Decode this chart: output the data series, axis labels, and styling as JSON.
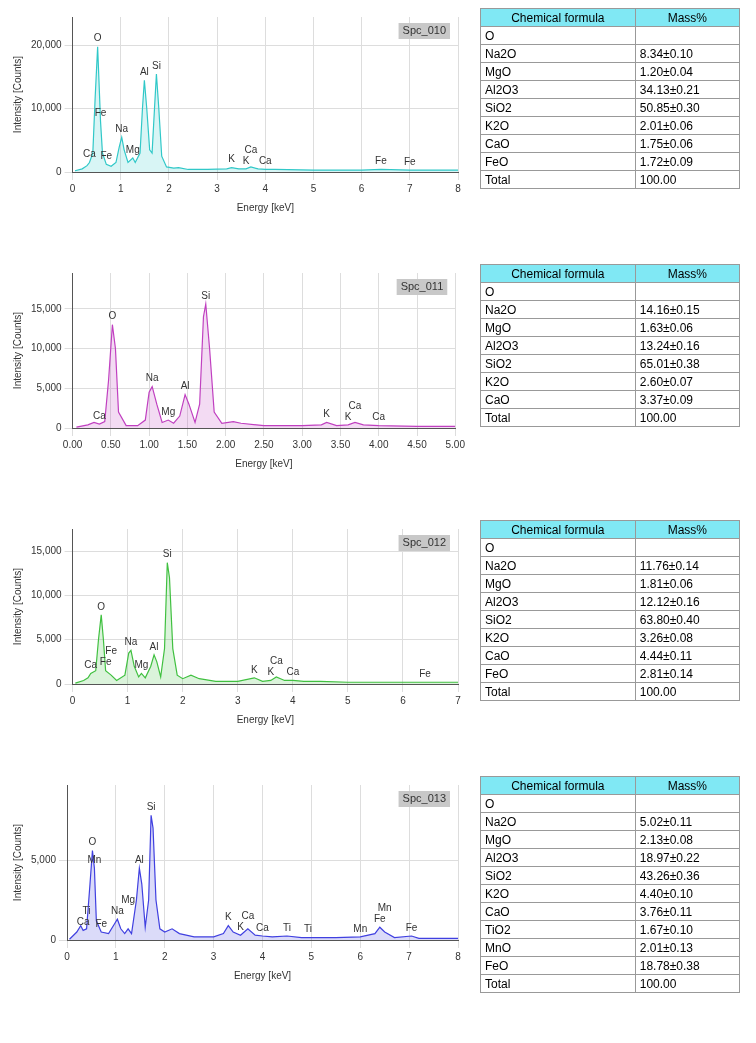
{
  "chart_data": [
    {
      "type": "area",
      "xlabel": "Energy [keV]",
      "ylabel": "Intensity [Counts]",
      "marker": "none",
      "grid": true,
      "xlim": [
        0,
        8
      ],
      "xticks": [
        0,
        1,
        2,
        3,
        4,
        5,
        6,
        7,
        8
      ],
      "ylim": [
        0,
        24500
      ],
      "yticks": [
        {
          "value": 0,
          "label": "0"
        },
        {
          "value": 10000,
          "label": "10,000"
        },
        {
          "value": 20000,
          "label": "20,000"
        }
      ],
      "series": [
        {
          "color": "#30c8c8",
          "x": [
            0.05,
            0.2,
            0.3,
            0.35,
            0.42,
            0.47,
            0.52,
            0.56,
            0.58,
            0.62,
            0.7,
            0.8,
            0.9,
            0.97,
            1.02,
            1.07,
            1.15,
            1.25,
            1.3,
            1.4,
            1.45,
            1.49,
            1.54,
            1.6,
            1.65,
            1.7,
            1.74,
            1.79,
            1.85,
            1.95,
            2.1,
            2.2,
            2.4,
            2.8,
            3.2,
            3.3,
            3.45,
            3.6,
            3.7,
            3.85,
            4.0,
            4.2,
            5,
            6,
            6.4,
            7,
            8
          ],
          "values": [
            200,
            500,
            1000,
            1500,
            3000,
            12000,
            19800,
            12000,
            8000,
            3000,
            1200,
            900,
            1500,
            4000,
            5500,
            3500,
            1500,
            2200,
            1500,
            3000,
            10000,
            14500,
            10000,
            3500,
            3000,
            10000,
            15500,
            10000,
            2500,
            800,
            600,
            700,
            400,
            400,
            500,
            700,
            500,
            500,
            800,
            500,
            400,
            400,
            300,
            300,
            400,
            300,
            300
          ]
        }
      ],
      "annotations": [
        "Spc_010",
        {
          "text": "Ca",
          "x": 0.35,
          "y": 1500
        },
        {
          "text": "O",
          "x": 0.52,
          "y": 19800
        },
        {
          "text": "Fe",
          "x": 0.58,
          "y": 8000
        },
        {
          "text": "Fe",
          "x": 0.7,
          "y": 1200
        },
        {
          "text": "Na",
          "x": 1.02,
          "y": 5500
        },
        {
          "text": "Mg",
          "x": 1.25,
          "y": 2200
        },
        {
          "text": "Al",
          "x": 1.49,
          "y": 14500
        },
        {
          "text": "Si",
          "x": 1.74,
          "y": 15500
        },
        {
          "text": "K",
          "x": 3.3,
          "y": 700
        },
        {
          "text": "K",
          "x": 3.6,
          "y": 500
        },
        {
          "text": "Ca",
          "x": 3.7,
          "y": 800
        },
        {
          "text": "Ca",
          "x": 4.0,
          "y": 400
        },
        {
          "text": "Fe",
          "x": 6.4,
          "y": 400
        },
        {
          "text": "Fe",
          "x": 7,
          "y": 300
        }
      ]
    },
    {
      "type": "other",
      "annotations": [
        "Chemical formula",
        "Mass%"
      ],
      "categories": [
        "O",
        "Na2O",
        "MgO",
        "Al2O3",
        "SiO2",
        "K2O",
        "CaO",
        "FeO",
        "Total"
      ],
      "value_labels": [
        null,
        "8.34±0.10",
        "1.20±0.04",
        "34.13±0.21",
        "50.85±0.30",
        "2.01±0.06",
        "1.75±0.06",
        "1.72±0.09",
        "100.00"
      ]
    },
    {
      "type": "area",
      "xlabel": "Energy [keV]",
      "ylabel": "Intensity [Counts]",
      "marker": "none",
      "grid": true,
      "xlim": [
        0,
        5
      ],
      "xticks": [
        {
          "value": 0,
          "label": "0.00"
        },
        {
          "value": 0.5,
          "label": "0.50"
        },
        {
          "value": 1,
          "label": "1.00"
        },
        {
          "value": 1.5,
          "label": "1.50"
        },
        {
          "value": 2,
          "label": "2.00"
        },
        {
          "value": 2.5,
          "label": "2.50"
        },
        {
          "value": 3,
          "label": "3.00"
        },
        {
          "value": 3.5,
          "label": "3.50"
        },
        {
          "value": 4,
          "label": "4.00"
        },
        {
          "value": 4.5,
          "label": "4.50"
        },
        {
          "value": 5,
          "label": "5.00"
        }
      ],
      "ylim": [
        0,
        19500
      ],
      "yticks": [
        {
          "value": 0,
          "label": "0"
        },
        {
          "value": 5000,
          "label": "5,000"
        },
        {
          "value": 10000,
          "label": "10,000"
        },
        {
          "value": 15000,
          "label": "15,000"
        }
      ],
      "series": [
        {
          "color": "#c040c0",
          "x": [
            0.05,
            0.2,
            0.28,
            0.35,
            0.42,
            0.47,
            0.52,
            0.56,
            0.6,
            0.7,
            0.85,
            0.95,
            1.0,
            1.04,
            1.1,
            1.17,
            1.25,
            1.32,
            1.4,
            1.47,
            1.52,
            1.6,
            1.66,
            1.71,
            1.74,
            1.79,
            1.85,
            1.95,
            2.1,
            2.2,
            2.5,
            3.0,
            3.25,
            3.32,
            3.45,
            3.6,
            3.69,
            3.8,
            4.0,
            4.5,
            5.0
          ],
          "values": [
            100,
            400,
            700,
            500,
            800,
            6000,
            13000,
            10000,
            2000,
            300,
            300,
            1000,
            4500,
            5200,
            3000,
            700,
            1000,
            600,
            1500,
            4200,
            3000,
            700,
            3000,
            14000,
            15600,
            10000,
            2000,
            600,
            800,
            600,
            300,
            300,
            400,
            700,
            300,
            400,
            700,
            400,
            300,
            200,
            200
          ]
        }
      ],
      "annotations": [
        "Spc_011",
        {
          "text": "Ca",
          "x": 0.35,
          "y": 500
        },
        {
          "text": "O",
          "x": 0.52,
          "y": 13000
        },
        {
          "text": "Na",
          "x": 1.04,
          "y": 5200
        },
        {
          "text": "Mg",
          "x": 1.25,
          "y": 1000
        },
        {
          "text": "Al",
          "x": 1.47,
          "y": 4200
        },
        {
          "text": "Si",
          "x": 1.74,
          "y": 15600
        },
        {
          "text": "K",
          "x": 3.32,
          "y": 700
        },
        {
          "text": "K",
          "x": 3.6,
          "y": 400
        },
        {
          "text": "Ca",
          "x": 3.69,
          "y": 700
        },
        {
          "text": "Ca",
          "x": 4.0,
          "y": 300
        }
      ]
    },
    {
      "type": "other",
      "annotations": [
        "Chemical formula",
        "Mass%"
      ],
      "categories": [
        "O",
        "Na2O",
        "MgO",
        "Al2O3",
        "SiO2",
        "K2O",
        "CaO",
        "Total"
      ],
      "value_labels": [
        null,
        "14.16±0.15",
        "1.63±0.06",
        "13.24±0.16",
        "65.01±0.38",
        "2.60±0.07",
        "3.37±0.09",
        "100.00"
      ]
    },
    {
      "type": "area",
      "xlabel": "Energy [keV]",
      "ylabel": "Intensity [Counts]",
      "marker": "none",
      "grid": true,
      "xlim": [
        0,
        7
      ],
      "xticks": [
        0,
        1,
        2,
        3,
        4,
        5,
        6,
        7
      ],
      "ylim": [
        0,
        17500
      ],
      "yticks": [
        {
          "value": 0,
          "label": "0"
        },
        {
          "value": 5000,
          "label": "5,000"
        },
        {
          "value": 10000,
          "label": "10,000"
        },
        {
          "value": 15000,
          "label": "15,000"
        }
      ],
      "series": [
        {
          "color": "#40c040",
          "x": [
            0.05,
            0.2,
            0.28,
            0.33,
            0.42,
            0.47,
            0.52,
            0.56,
            0.6,
            0.7,
            0.8,
            0.95,
            1.02,
            1.06,
            1.12,
            1.2,
            1.25,
            1.32,
            1.42,
            1.48,
            1.53,
            1.6,
            1.67,
            1.72,
            1.76,
            1.82,
            1.9,
            2.0,
            2.15,
            2.3,
            2.6,
            3.0,
            3.3,
            3.45,
            3.6,
            3.7,
            3.85,
            4.0,
            4.2,
            4.5,
            5,
            6,
            6.4,
            7
          ],
          "values": [
            100,
            400,
            700,
            1200,
            1500,
            5000,
            7800,
            5000,
            1500,
            1000,
            400,
            1000,
            3500,
            3800,
            2000,
            800,
            1200,
            700,
            2000,
            3300,
            2500,
            800,
            4000,
            13700,
            12000,
            4000,
            1000,
            600,
            1000,
            600,
            300,
            300,
            700,
            300,
            400,
            800,
            400,
            400,
            300,
            300,
            200,
            200,
            200,
            200
          ]
        }
      ],
      "annotations": [
        "Spc_012",
        {
          "text": "Ca",
          "x": 0.33,
          "y": 1200
        },
        {
          "text": "O",
          "x": 0.52,
          "y": 7800
        },
        {
          "text": "Fe",
          "x": 0.6,
          "y": 1500
        },
        {
          "text": "Fe",
          "x": 0.7,
          "y": 1000
        },
        {
          "text": "Na",
          "x": 1.06,
          "y": 3800
        },
        {
          "text": "Mg",
          "x": 1.25,
          "y": 1200
        },
        {
          "text": "Al",
          "x": 1.48,
          "y": 3300
        },
        {
          "text": "Si",
          "x": 1.72,
          "y": 13700
        },
        {
          "text": "K",
          "x": 3.3,
          "y": 700
        },
        {
          "text": "K",
          "x": 3.6,
          "y": 400
        },
        {
          "text": "Ca",
          "x": 3.7,
          "y": 800
        },
        {
          "text": "Ca",
          "x": 4.0,
          "y": 400
        },
        {
          "text": "Fe",
          "x": 6.4,
          "y": 200
        }
      ]
    },
    {
      "type": "other",
      "annotations": [
        "Chemical formula",
        "Mass%"
      ],
      "categories": [
        "O",
        "Na2O",
        "MgO",
        "Al2O3",
        "SiO2",
        "K2O",
        "CaO",
        "FeO",
        "Total"
      ],
      "value_labels": [
        null,
        "11.76±0.14",
        "1.81±0.06",
        "12.12±0.16",
        "63.80±0.40",
        "3.26±0.08",
        "4.44±0.11",
        "2.81±0.14",
        "100.00"
      ]
    },
    {
      "type": "area",
      "xlabel": "Energy [keV]",
      "ylabel": "Intensity [Counts]",
      "marker": "none",
      "grid": true,
      "xlim": [
        0,
        8
      ],
      "xticks": [
        0,
        1,
        2,
        3,
        4,
        5,
        6,
        7,
        8
      ],
      "ylim": [
        0,
        9700
      ],
      "yticks": [
        {
          "value": 0,
          "label": "0"
        },
        {
          "value": 5000,
          "label": "5,000"
        }
      ],
      "series": [
        {
          "color": "#4040e0",
          "x": [
            0.05,
            0.2,
            0.28,
            0.33,
            0.4,
            0.47,
            0.52,
            0.56,
            0.6,
            0.7,
            0.85,
            0.97,
            1.03,
            1.1,
            1.18,
            1.25,
            1.32,
            1.42,
            1.48,
            1.53,
            1.6,
            1.67,
            1.72,
            1.76,
            1.82,
            1.9,
            2.0,
            2.15,
            2.3,
            2.6,
            3.0,
            3.2,
            3.3,
            3.4,
            3.55,
            3.7,
            3.85,
            4.0,
            4.2,
            4.5,
            4.8,
            4.93,
            5.5,
            6.0,
            6.3,
            6.4,
            6.5,
            6.7,
            7.05,
            7.2,
            8
          ],
          "values": [
            50,
            500,
            900,
            600,
            700,
            3500,
            5600,
            4500,
            1200,
            500,
            400,
            1000,
            1300,
            700,
            400,
            700,
            400,
            2500,
            4500,
            3500,
            800,
            2500,
            7800,
            7000,
            2500,
            700,
            500,
            700,
            400,
            200,
            200,
            400,
            900,
            500,
            300,
            700,
            300,
            250,
            200,
            250,
            150,
            150,
            150,
            200,
            400,
            800,
            500,
            150,
            250,
            100,
            100
          ]
        }
      ],
      "annotations": [
        "Spc_013",
        {
          "text": "Ca",
          "x": 0.33,
          "y": 600
        },
        {
          "text": "Ti",
          "x": 0.4,
          "y": 700
        },
        {
          "text": "O",
          "x": 0.52,
          "y": 5600
        },
        {
          "text": "Mn",
          "x": 0.56,
          "y": 4500
        },
        {
          "text": "Fe",
          "x": 0.7,
          "y": 500
        },
        {
          "text": "Na",
          "x": 1.03,
          "y": 1300
        },
        {
          "text": "Mg",
          "x": 1.25,
          "y": 700
        },
        {
          "text": "Al",
          "x": 1.48,
          "y": 4500
        },
        {
          "text": "Si",
          "x": 1.72,
          "y": 7800
        },
        {
          "text": "K",
          "x": 3.3,
          "y": 900
        },
        {
          "text": "K",
          "x": 3.55,
          "y": 300
        },
        {
          "text": "Ca",
          "x": 3.7,
          "y": 700
        },
        {
          "text": "Ca",
          "x": 4.0,
          "y": 250
        },
        {
          "text": "Ti",
          "x": 4.5,
          "y": 250
        },
        {
          "text": "Ti",
          "x": 4.93,
          "y": 150
        },
        {
          "text": "Mn",
          "x": 6.0,
          "y": 200
        },
        {
          "text": "Fe",
          "x": 6.4,
          "y": 800
        },
        {
          "text": "Mn",
          "x": 6.5,
          "y": 500
        },
        {
          "text": "Fe",
          "x": 7.05,
          "y": 250
        }
      ]
    },
    {
      "type": "other",
      "annotations": [
        "Chemical formula",
        "Mass%"
      ],
      "categories": [
        "O",
        "Na2O",
        "MgO",
        "Al2O3",
        "SiO2",
        "K2O",
        "CaO",
        "TiO2",
        "MnO",
        "FeO",
        "Total"
      ],
      "value_labels": [
        null,
        "5.02±0.11",
        "2.13±0.08",
        "18.97±0.22",
        "43.26±0.36",
        "4.40±0.10",
        "3.76±0.11",
        "1.67±0.10",
        "2.01±0.13",
        "18.78±0.38",
        "100.00"
      ]
    }
  ]
}
